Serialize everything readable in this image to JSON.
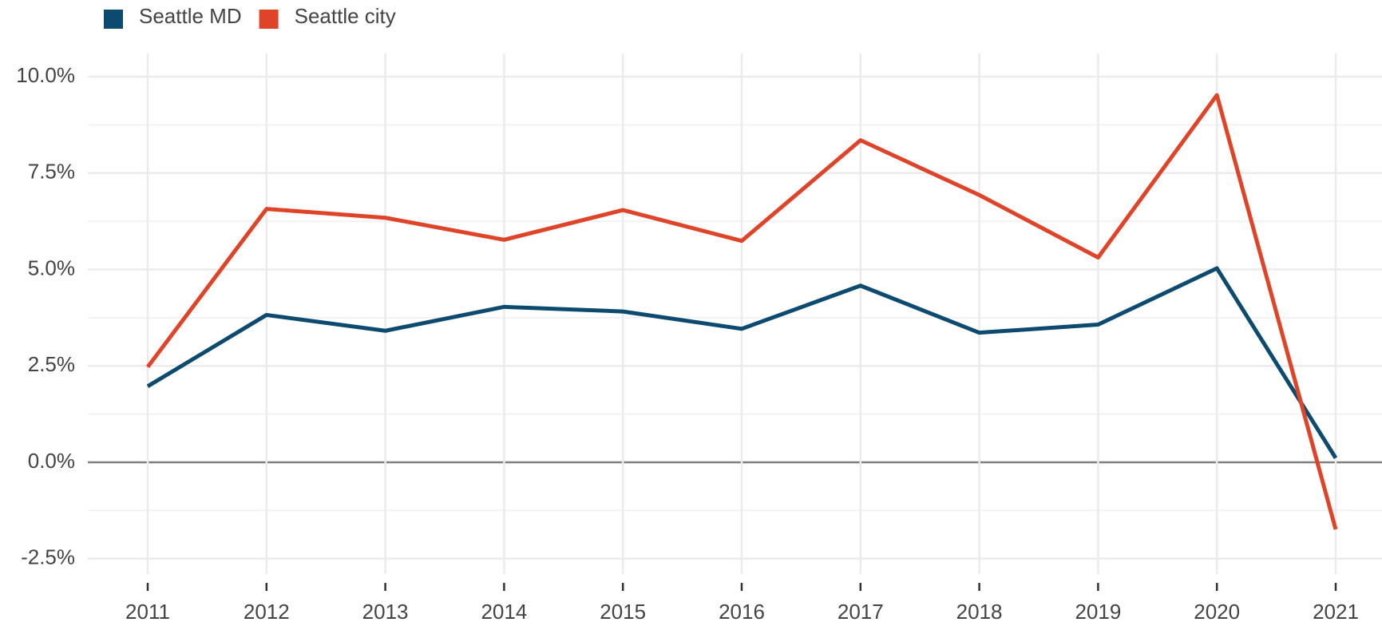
{
  "chart_data": {
    "type": "line",
    "categories": [
      "2011",
      "2012",
      "2013",
      "2014",
      "2015",
      "2016",
      "2017",
      "2018",
      "2019",
      "2020",
      "2021"
    ],
    "series": [
      {
        "name": "Seattle MD",
        "color": "#0d4a70",
        "values": [
          1.97,
          3.82,
          3.41,
          4.03,
          3.91,
          3.46,
          4.58,
          3.36,
          3.57,
          5.03,
          0.11
        ]
      },
      {
        "name": "Seattle city",
        "color": "#e04428",
        "values": [
          2.47,
          6.57,
          6.34,
          5.77,
          6.54,
          5.74,
          8.35,
          6.93,
          5.31,
          9.52,
          -1.74
        ]
      }
    ],
    "ylim": [
      -2.9,
      10.6
    ],
    "yticks": [
      {
        "value": -2.5,
        "label": "-2.5%"
      },
      {
        "value": 0,
        "label": "0.0%"
      },
      {
        "value": 2.5,
        "label": "2.5%"
      },
      {
        "value": 5,
        "label": "5.0%"
      },
      {
        "value": 7.5,
        "label": "7.5%"
      },
      {
        "value": 10,
        "label": "10.0%"
      }
    ],
    "grid": true,
    "legend": "top"
  }
}
